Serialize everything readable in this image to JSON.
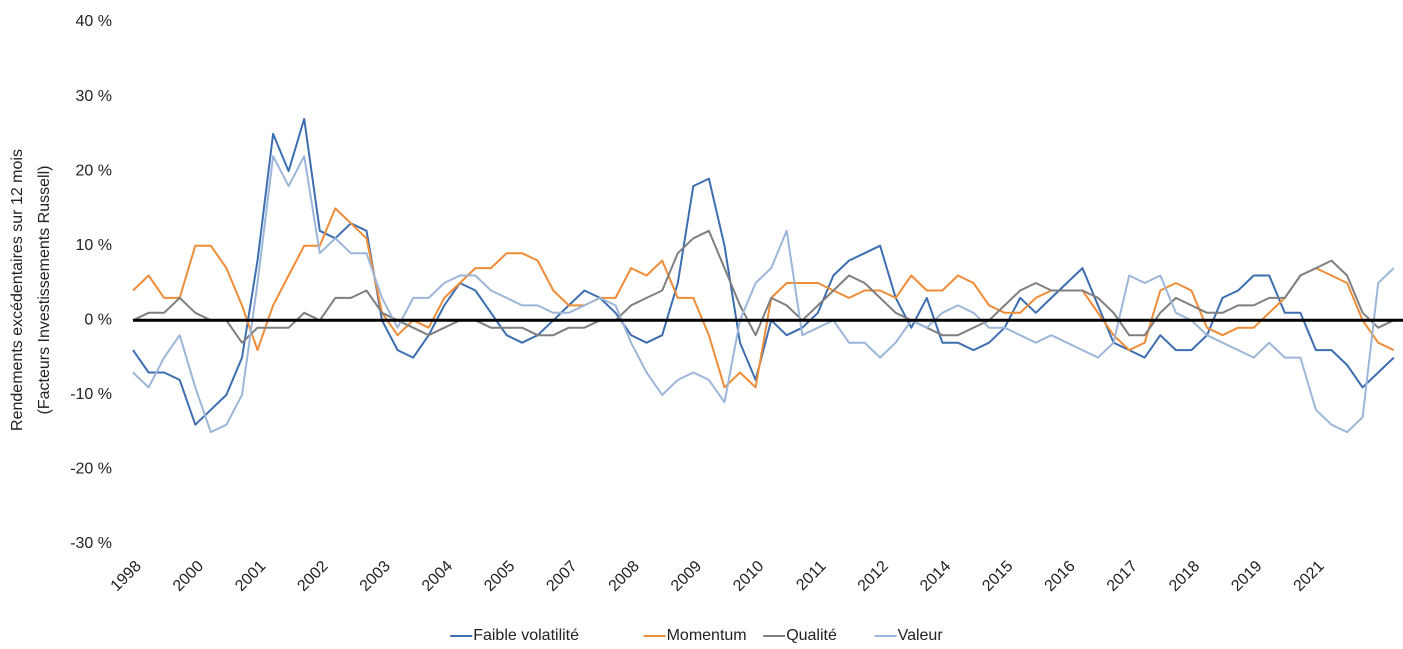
{
  "chart_data": {
    "type": "line",
    "ylabel_lines": [
      "Rendements excédentaires sur 12 mois",
      "(Facteurs Investissements Russell)"
    ],
    "categories": [
      "1998",
      null,
      null,
      null,
      "2000",
      null,
      null,
      null,
      "2001",
      null,
      null,
      null,
      "2002",
      null,
      null,
      null,
      "2003",
      null,
      null,
      null,
      "2004",
      null,
      null,
      null,
      "2005",
      null,
      null,
      null,
      "2007",
      null,
      null,
      null,
      "2008",
      null,
      null,
      null,
      "2009",
      null,
      null,
      null,
      "2010",
      null,
      null,
      null,
      "2011",
      null,
      null,
      null,
      "2012",
      null,
      null,
      null,
      "2014",
      null,
      null,
      null,
      "2015",
      null,
      null,
      null,
      "2016",
      null,
      null,
      null,
      "2017",
      null,
      null,
      null,
      "2018",
      null,
      null,
      null,
      "2019",
      null,
      null,
      null,
      "2021",
      null,
      null,
      null,
      null,
      null
    ],
    "series": [
      {
        "name": "Faible volatilité",
        "color": "#3d6eb0",
        "values": [
          -4,
          -7,
          -7,
          -8,
          -14,
          -12,
          -10,
          -5,
          8,
          25,
          20,
          27,
          12,
          11,
          13,
          12,
          0,
          -4,
          -5,
          -2,
          2,
          5,
          4,
          1,
          -2,
          -3,
          -2,
          0,
          2,
          4,
          3,
          1,
          -2,
          -3,
          -2,
          5,
          18,
          19,
          10,
          -3,
          -8,
          0,
          -2,
          -1,
          1,
          6,
          8,
          9,
          10,
          3,
          -1,
          3,
          -3,
          -3,
          -4,
          -3,
          -1,
          3,
          1,
          3,
          5,
          7,
          2,
          -3,
          -4,
          -5,
          -2,
          -4,
          -4,
          -2,
          3,
          4,
          6,
          6,
          1,
          1,
          -4,
          -4,
          -6,
          -9,
          -7,
          -5
        ]
      },
      {
        "name": "Momentum",
        "color": "#ef8c37",
        "values": [
          4,
          6,
          3,
          3,
          10,
          10,
          7,
          2,
          -4,
          2,
          6,
          10,
          10,
          15,
          13,
          11,
          1,
          -2,
          0,
          -1,
          3,
          5,
          7,
          7,
          9,
          9,
          8,
          4,
          2,
          2,
          3,
          3,
          7,
          6,
          8,
          3,
          3,
          -2,
          -9,
          -7,
          -9,
          3,
          5,
          5,
          5,
          4,
          3,
          4,
          4,
          3,
          6,
          4,
          4,
          6,
          5,
          2,
          1,
          1,
          3,
          4,
          4,
          4,
          1,
          -2,
          -4,
          -3,
          4,
          5,
          4,
          -1,
          -2,
          -1,
          -1,
          1,
          3,
          6,
          7,
          6,
          5,
          0,
          -3,
          -4
        ]
      },
      {
        "name": "Qualité",
        "color": "#7f7f7f",
        "values": [
          0,
          1,
          1,
          3,
          1,
          0,
          0,
          -3,
          -1,
          -1,
          -1,
          1,
          0,
          3,
          3,
          4,
          1,
          0,
          -1,
          -2,
          -1,
          0,
          0,
          -1,
          -1,
          -1,
          -2,
          -2,
          -1,
          -1,
          0,
          0,
          2,
          3,
          4,
          9,
          11,
          12,
          7,
          2,
          -2,
          3,
          2,
          0,
          2,
          4,
          6,
          5,
          3,
          1,
          0,
          -1,
          -2,
          -2,
          -1,
          0,
          2,
          4,
          5,
          4,
          4,
          4,
          3,
          1,
          -2,
          -2,
          1,
          3,
          2,
          1,
          1,
          2,
          2,
          3,
          3,
          6,
          7,
          8,
          6,
          1,
          -1,
          0
        ]
      },
      {
        "name": "Valeur",
        "color": "#9cb6d9",
        "values": [
          -7,
          -9,
          -5,
          -2,
          -9,
          -15,
          -14,
          -10,
          5,
          22,
          18,
          22,
          9,
          11,
          9,
          9,
          3,
          -1,
          3,
          3,
          5,
          6,
          6,
          4,
          3,
          2,
          2,
          1,
          1,
          2,
          3,
          2,
          -3,
          -7,
          -10,
          -8,
          -7,
          -8,
          -11,
          0,
          5,
          7,
          12,
          -2,
          -1,
          0,
          -3,
          -3,
          -5,
          -3,
          0,
          -1,
          1,
          2,
          1,
          -1,
          -1,
          -2,
          -3,
          -2,
          -3,
          -4,
          -5,
          -3,
          6,
          5,
          6,
          1,
          0,
          -2,
          -3,
          -4,
          -5,
          -3,
          -5,
          -5,
          -12,
          -14,
          -15,
          -13,
          5,
          7
        ]
      }
    ],
    "ylim": [
      -30,
      40
    ],
    "yticks": [
      {
        "value": -30,
        "label": "-30 %"
      },
      {
        "value": -20,
        "label": "-20 %"
      },
      {
        "value": -10,
        "label": "-10 %"
      },
      {
        "value": 0,
        "label": "0 %"
      },
      {
        "value": 10,
        "label": "10 %"
      },
      {
        "value": 20,
        "label": "20 %"
      },
      {
        "value": 30,
        "label": "30 %"
      },
      {
        "value": 40,
        "label": "40 %"
      }
    ],
    "grid": false,
    "legend": "bottom"
  }
}
